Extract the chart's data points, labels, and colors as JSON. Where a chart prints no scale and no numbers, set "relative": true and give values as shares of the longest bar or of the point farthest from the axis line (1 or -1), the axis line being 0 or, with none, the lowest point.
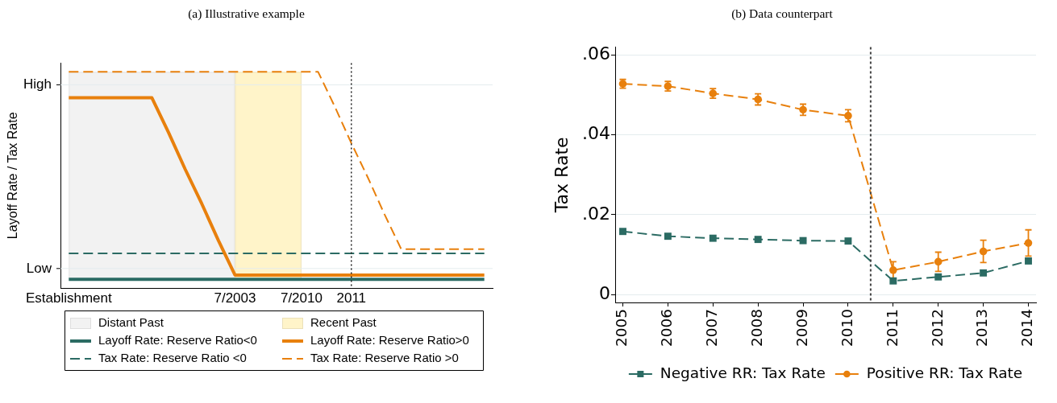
{
  "chart_data": [
    {
      "type": "line",
      "title": "(a) Illustrative example",
      "ylabel": "Layoff Rate / Tax Rate",
      "relative": true,
      "categories": [
        "Establishment",
        null,
        null,
        null,
        null,
        null,
        null,
        null,
        null,
        null,
        "7/2003",
        null,
        null,
        null,
        "7/2010",
        null,
        null,
        "2011",
        null,
        null,
        null,
        null,
        null,
        null,
        null,
        null
      ],
      "series": [
        {
          "name": "Layoff Rate: Reserve Ratio<0",
          "color": "#2b6b63",
          "line_style": "solid",
          "values": [
            0.04,
            0.04,
            0.04,
            0.04,
            0.04,
            0.04,
            0.04,
            0.04,
            0.04,
            0.04,
            0.04,
            0.04,
            0.04,
            0.04,
            0.04,
            0.04,
            0.04,
            0.04,
            0.04,
            0.04,
            0.04,
            0.04,
            0.04,
            0.04,
            0.04,
            0.04
          ]
        },
        {
          "name": "Layoff Rate: Reserve Ratio>0",
          "color": "#e8800d",
          "line_style": "solid",
          "values": [
            0.88,
            0.88,
            0.88,
            0.88,
            0.88,
            0.88,
            0.72,
            0.55,
            0.39,
            0.22,
            0.06,
            0.06,
            0.06,
            0.06,
            0.06,
            0.06,
            0.06,
            0.06,
            0.06,
            0.06,
            0.06,
            0.06,
            0.06,
            0.06,
            0.06,
            0.06
          ]
        },
        {
          "name": "Tax Rate: Reserve Ratio <0",
          "color": "#2b6b63",
          "line_style": "dashed",
          "values": [
            0.16,
            0.16,
            0.16,
            0.16,
            0.16,
            0.16,
            0.16,
            0.16,
            0.16,
            0.16,
            0.16,
            0.16,
            0.16,
            0.16,
            0.16,
            0.16,
            0.16,
            0.16,
            0.16,
            0.16,
            0.16,
            0.16,
            0.16,
            0.16,
            0.16,
            0.16
          ]
        },
        {
          "name": "Tax Rate: Reserve Ratio >0",
          "color": "#e8800d",
          "line_style": "dashed",
          "values": [
            1,
            1,
            1,
            1,
            1,
            1,
            1,
            1,
            1,
            1,
            1,
            1,
            1,
            1,
            1,
            1,
            0.84,
            0.67,
            0.51,
            0.34,
            0.18,
            0.18,
            0.18,
            0.18,
            0.18,
            0.18
          ]
        }
      ],
      "bands": [
        {
          "axis": "x",
          "from": "Establishment",
          "to": "7/2003",
          "label": "Distant Past",
          "color": "#f2f2f2"
        },
        {
          "axis": "x",
          "from": "7/2003",
          "to": "7/2010",
          "label": "Recent Past",
          "color": "#fff4c9"
        }
      ],
      "ref_lines": [
        {
          "axis": "y",
          "value": 0.09,
          "label": "Low",
          "color": "#e4ecee"
        },
        {
          "axis": "y",
          "value": 0.94,
          "label": "High",
          "color": "#e4ecee"
        },
        {
          "axis": "x",
          "value": "2011",
          "color": "#222222",
          "line_style": "dotted"
        }
      ],
      "marker": "none",
      "legend": "bottom"
    },
    {
      "type": "line",
      "title": "(b) Data counterpart",
      "ylabel": "Tax Rate",
      "x": [
        2005,
        2006,
        2007,
        2008,
        2009,
        2010,
        2011,
        2012,
        2013,
        2014
      ],
      "xlim": [
        2004.83,
        2014.17
      ],
      "xticks": [
        2005,
        2006,
        2007,
        2008,
        2009,
        2010,
        2011,
        2012,
        2013,
        2014
      ],
      "ylim": [
        -0.002,
        0.062
      ],
      "yticks": [
        0,
        {
          "value": 0.02,
          "label": ".02"
        },
        {
          "value": 0.04,
          "label": ".04"
        },
        {
          "value": 0.06,
          "label": ".06"
        }
      ],
      "series": [
        {
          "name": "Negative RR: Tax Rate",
          "color": "#2b6b63",
          "marker": "square",
          "values": [
            0.0158,
            0.0146,
            0.0141,
            0.0138,
            0.0135,
            0.0134,
            0.0034,
            0.0044,
            0.0054,
            0.0084
          ]
        },
        {
          "name": "Positive RR: Tax Rate",
          "color": "#e8800d",
          "marker": "circle",
          "values": [
            0.0528,
            0.0522,
            0.0504,
            0.0489,
            0.0463,
            0.0448,
            0.0061,
            0.0082,
            0.0108,
            0.0129
          ],
          "errors": [
            0.0011,
            0.0012,
            0.0012,
            0.0014,
            0.0014,
            0.0015,
            0.0021,
            0.0024,
            0.0028,
            0.0033
          ]
        }
      ],
      "ref_lines": [
        {
          "axis": "x",
          "value": 2010.5,
          "color": "#444444",
          "line_style": "dotted"
        }
      ],
      "line_style": "dashed",
      "grid": "y",
      "legend": "bottom"
    }
  ]
}
